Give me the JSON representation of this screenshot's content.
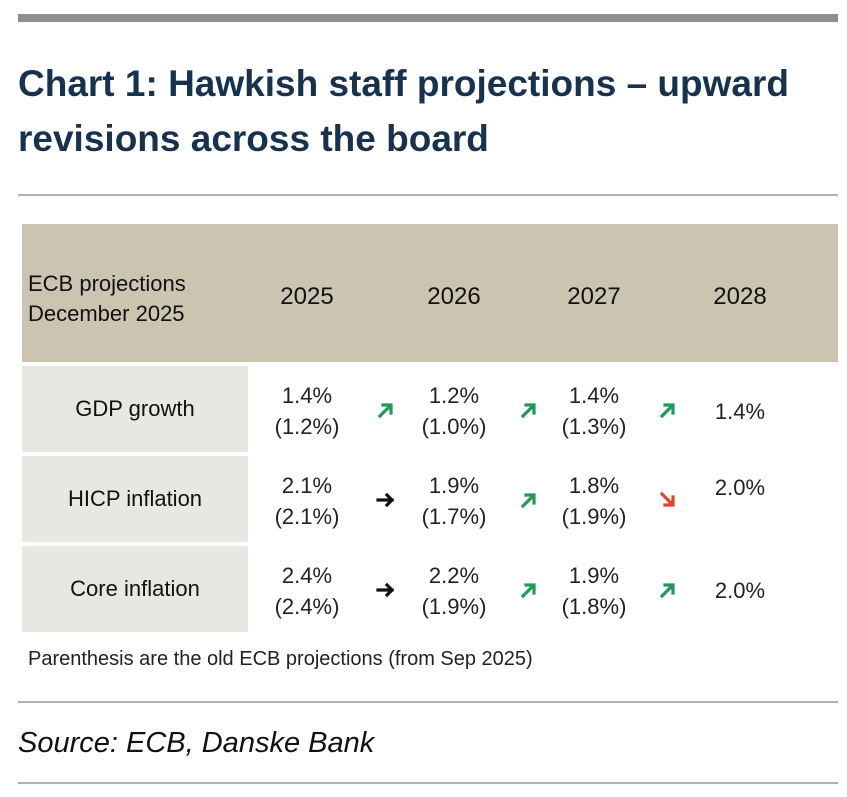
{
  "title": "Chart 1: Hawkish staff projections – upward revisions across the board",
  "table": {
    "header_label_line1": "ECB projections",
    "header_label_line2": "December 2025",
    "years": [
      "2025",
      "2026",
      "2027",
      "2028"
    ],
    "rows": [
      {
        "label": "GDP growth",
        "cells": [
          {
            "new": "1.4%",
            "old": "(1.2%)"
          },
          {
            "new": "1.2%",
            "old": "(1.0%)"
          },
          {
            "new": "1.4%",
            "old": "(1.3%)"
          },
          {
            "new": "1.4%",
            "old": ""
          }
        ],
        "arrows": [
          "up",
          "up",
          "up"
        ]
      },
      {
        "label": "HICP inflation",
        "cells": [
          {
            "new": "2.1%",
            "old": "(2.1%)"
          },
          {
            "new": "1.9%",
            "old": "(1.7%)"
          },
          {
            "new": "1.8%",
            "old": "(1.9%)"
          },
          {
            "new": "2.0%",
            "old": ""
          }
        ],
        "arrows": [
          "flat",
          "up",
          "down"
        ]
      },
      {
        "label": "Core inflation",
        "cells": [
          {
            "new": "2.4%",
            "old": "(2.4%)"
          },
          {
            "new": "2.2%",
            "old": "(1.9%)"
          },
          {
            "new": "1.9%",
            "old": "(1.8%)"
          },
          {
            "new": "2.0%",
            "old": ""
          }
        ],
        "arrows": [
          "flat",
          "up",
          "up"
        ]
      }
    ]
  },
  "note": "Parenthesis are the old ECB projections (from Sep 2025)",
  "source": "Source: ECB, Danske Bank",
  "colors": {
    "title": "#16324f",
    "header_band": "#cbc4b1",
    "row_label_bg": "#e8e7e1",
    "arrow_up": "#1f9a5a",
    "arrow_down": "#e0452a",
    "arrow_flat": "#111111"
  },
  "icons": {
    "up": "arrow-up-right-icon",
    "down": "arrow-down-right-icon",
    "flat": "arrow-right-icon"
  }
}
